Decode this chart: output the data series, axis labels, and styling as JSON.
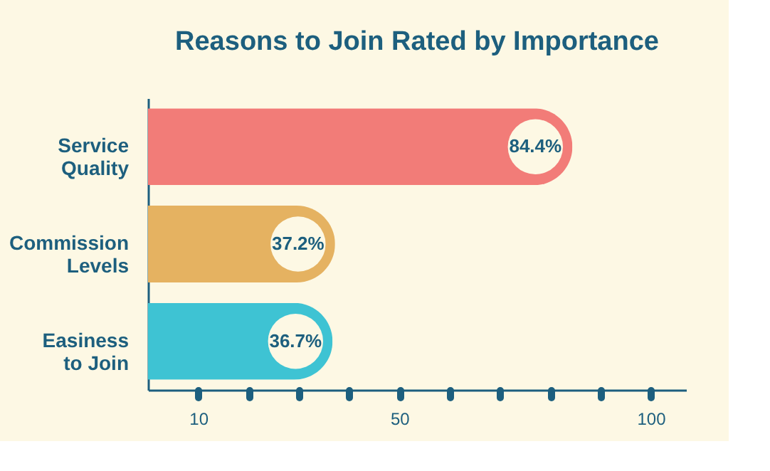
{
  "chart_data": {
    "type": "bar",
    "orientation": "horizontal",
    "title": "Reasons to Join Rated by Importance",
    "categories": [
      "Service Quality",
      "Commission Levels",
      "Easiness to Join"
    ],
    "values": [
      84.4,
      37.2,
      36.7
    ],
    "colors": [
      "#f27c78",
      "#e5b261",
      "#3ec3d3"
    ],
    "value_labels": [
      "84.4%",
      "37.2%",
      "36.7%"
    ],
    "xlim": [
      0,
      107
    ],
    "xticks": [
      10,
      {
        "value": 20,
        "label": null
      },
      {
        "value": 30,
        "label": null
      },
      {
        "value": 40,
        "label": null
      },
      50,
      {
        "value": 60,
        "label": null
      },
      {
        "value": 70,
        "label": null
      },
      {
        "value": 80,
        "label": null
      },
      {
        "value": 90,
        "label": null
      },
      100
    ],
    "grid": false
  }
}
